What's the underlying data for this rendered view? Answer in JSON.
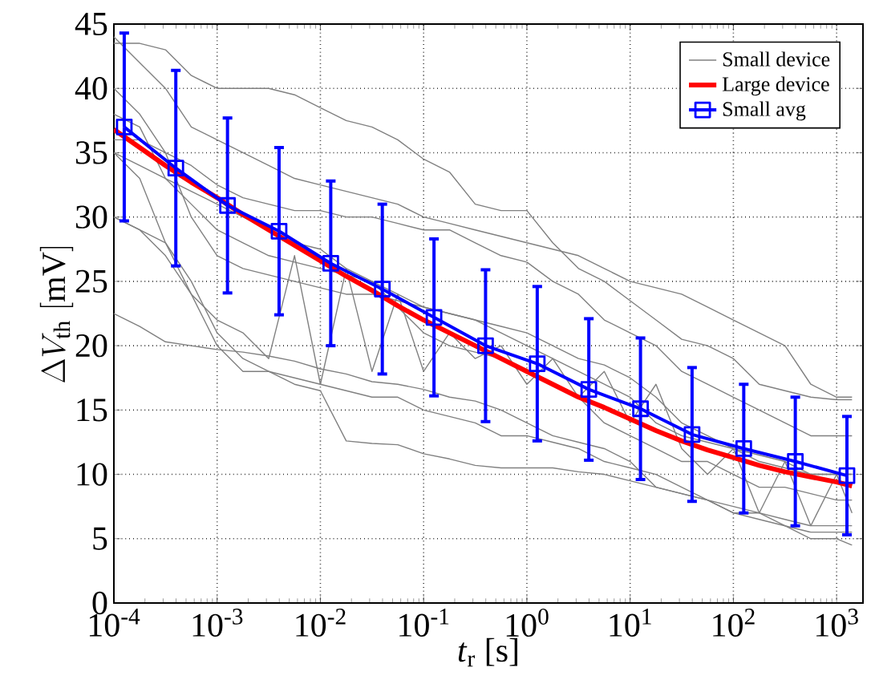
{
  "chart_data": {
    "type": "line",
    "xlabel": "*t*$_{r}$ [s]",
    "ylabel": "\\Delta V_{\\mathrm{th}}\\;[\\mathrm{mV}]",
    "log": "x",
    "grid": true,
    "legend": "top right",
    "xlim": [
      0.0001,
      1800
    ],
    "ylim": [
      0,
      45
    ],
    "xticks": [
      {
        "value": 0.0001,
        "label": "10$^{-4}$"
      },
      {
        "value": 0.001,
        "label": "10$^{-3}$"
      },
      {
        "value": 0.01,
        "label": "10$^{-2}$"
      },
      {
        "value": 0.1,
        "label": "10$^{-1}$"
      },
      {
        "value": 1,
        "label": "10$^{0}$"
      },
      {
        "value": 10,
        "label": "10$^{1}$"
      },
      {
        "value": 100,
        "label": "10$^{2}$"
      },
      {
        "value": 1000,
        "label": "10$^{3}$"
      }
    ],
    "yticks": [
      0,
      5,
      10,
      15,
      20,
      25,
      30,
      35,
      40,
      45
    ],
    "x": [
      0.0001,
      0.000178,
      0.000316,
      0.000562,
      0.001,
      0.00178,
      0.00316,
      0.00562,
      0.01,
      0.0178,
      0.0316,
      0.0562,
      0.1,
      0.178,
      0.316,
      0.562,
      1,
      1.78,
      3.16,
      5.62,
      10,
      17.8,
      31.6,
      56.2,
      100,
      178,
      316,
      562,
      1000,
      1410
    ],
    "series": [
      {
        "name": "Small device",
        "color": "#808080",
        "values": [
          43.5,
          43.5,
          43,
          41,
          40,
          40,
          40,
          39.5,
          38.5,
          37.5,
          37,
          36,
          34.5,
          33.5,
          31,
          30.5,
          30.5,
          28,
          26,
          25,
          23.5,
          22,
          20.5,
          20,
          19,
          17,
          16.5,
          16,
          15.8,
          15.8
        ]
      },
      {
        "color": "#808080",
        "values": [
          40,
          38,
          35,
          34,
          32.5,
          31.5,
          31,
          30.5,
          30.5,
          30,
          30,
          29.5,
          29,
          29,
          28,
          27,
          26.5,
          25,
          24,
          22,
          21,
          20,
          18,
          17,
          16,
          15,
          14,
          13,
          13,
          13
        ]
      },
      {
        "color": "#808080",
        "values": [
          36,
          36,
          35,
          30,
          27,
          26,
          25.5,
          25,
          24.5,
          24,
          24,
          23.5,
          23,
          22.5,
          22,
          21,
          20,
          19,
          18,
          17,
          16,
          14,
          13,
          12.5,
          12,
          11,
          10.5,
          10,
          10,
          10
        ]
      },
      {
        "color": "#808080",
        "values": [
          35,
          34,
          33,
          32,
          31,
          30,
          29,
          28,
          27.5,
          26,
          25,
          23,
          21,
          20,
          19.5,
          19,
          18,
          17,
          16,
          14,
          13,
          12,
          11,
          11,
          10,
          9,
          9,
          8.5,
          8,
          8
        ]
      },
      {
        "color": "#808080",
        "values": [
          35,
          33,
          28,
          24,
          22,
          21,
          19,
          27,
          17,
          26,
          18,
          24,
          18,
          21,
          19,
          20,
          17,
          19,
          16,
          18,
          14,
          17,
          12,
          10,
          12,
          7,
          11,
          6,
          10,
          7
        ]
      },
      {
        "color": "#808080",
        "values": [
          30,
          29,
          27,
          24,
          20,
          18,
          18,
          17.5,
          17,
          16.5,
          16,
          16,
          15,
          14.5,
          14,
          13,
          13,
          12.5,
          12,
          11,
          10.5,
          10,
          9,
          8,
          7,
          7,
          6,
          5.5,
          5.5,
          5.5
        ]
      },
      {
        "color": "#808080",
        "values": [
          22.5,
          21.5,
          20.3,
          20,
          19.7,
          19.5,
          19.2,
          18.8,
          18.2,
          17.8,
          17.2,
          17,
          16.6,
          16,
          15.7,
          15,
          14,
          13,
          12.5,
          12,
          11,
          9,
          8.5,
          8,
          7,
          6.5,
          6,
          5,
          5,
          4.5
        ]
      },
      {
        "color": "#808080",
        "values": [
          30,
          29,
          28,
          25,
          21,
          19,
          18,
          17,
          16.5,
          12.6,
          12.4,
          12.3,
          11.6,
          11.2,
          10.7,
          10.5,
          10.5,
          10.5,
          10.2,
          10,
          9.5,
          9,
          8.5,
          8,
          7.5,
          7,
          6.5,
          6,
          6,
          6
        ]
      },
      {
        "color": "#808080",
        "values": [
          38,
          37,
          33,
          31,
          29,
          28,
          27,
          26.5,
          26,
          25.5,
          25,
          24,
          23,
          22.5,
          22,
          21.5,
          21,
          20,
          19,
          18.5,
          17.5,
          16,
          14,
          13,
          12,
          11.5,
          11,
          10,
          10,
          10
        ]
      },
      {
        "color": "#808080",
        "values": [
          44,
          42,
          40,
          37,
          36,
          35,
          34,
          33,
          32.5,
          32,
          31.5,
          31,
          30,
          29.5,
          29,
          28.5,
          28,
          27.5,
          27,
          26,
          25,
          24.5,
          24,
          23,
          22,
          21,
          20,
          17,
          16,
          16
        ]
      },
      {
        "name": "Large device",
        "color": "#ff0000",
        "values": [
          36.8,
          35.4,
          34.0,
          32.7,
          31.5,
          30.2,
          29.0,
          27.8,
          26.6,
          25.4,
          24.3,
          23.1,
          22.0,
          21.0,
          20.0,
          19.0,
          18.0,
          17.0,
          16.0,
          15.2,
          14.3,
          13.4,
          12.6,
          11.9,
          11.3,
          10.7,
          10.2,
          9.8,
          9.4,
          9.1
        ]
      },
      {
        "name": "Small avg",
        "color": "#0000ff",
        "marker": "square",
        "x": [
          0.000126,
          0.000398,
          0.00126,
          0.00398,
          0.0126,
          0.0398,
          0.126,
          0.398,
          1.26,
          3.98,
          12.6,
          39.8,
          126,
          398,
          1259
        ],
        "values": [
          37,
          33.8,
          30.9,
          28.9,
          26.4,
          24.4,
          22.2,
          20,
          18.6,
          16.6,
          15.1,
          13.1,
          12,
          11,
          9.9
        ],
        "errors": [
          7.3,
          7.6,
          6.8,
          6.5,
          6.4,
          6.6,
          6.1,
          5.9,
          6,
          5.5,
          5.5,
          5.2,
          5,
          5,
          4.6
        ]
      }
    ]
  }
}
